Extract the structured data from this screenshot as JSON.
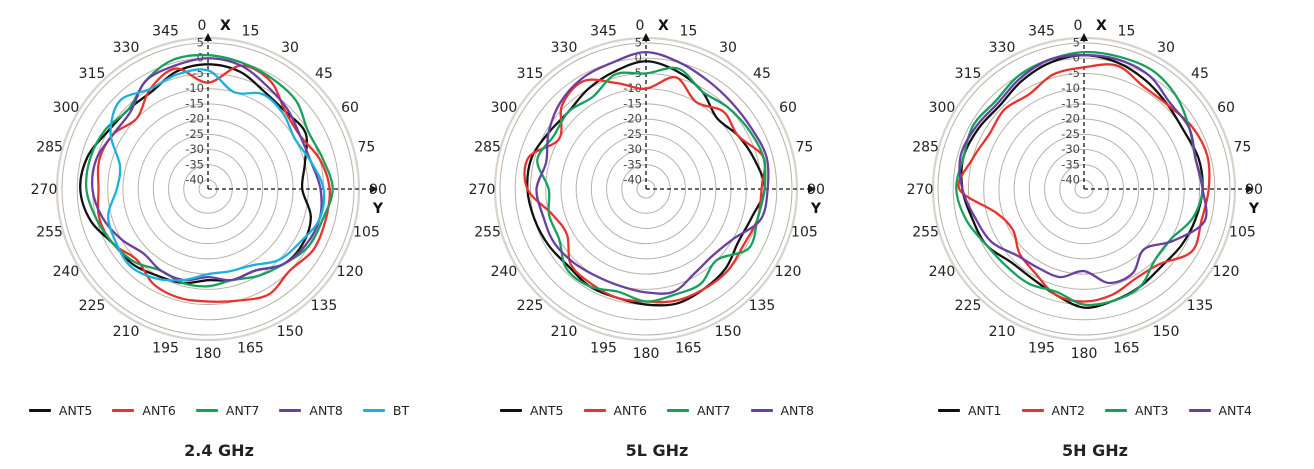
{
  "chart_data": [
    {
      "type": "polar-line",
      "title": "2.4 GHz",
      "axis_labels": {
        "x": "X",
        "y": "Y"
      },
      "rings": [
        "5",
        "0",
        "-5",
        "-10",
        "-15",
        "-20",
        "-25",
        "-30",
        "-35",
        "-40"
      ],
      "rlim": [
        -40,
        5
      ],
      "angle_labels": [
        "0",
        "15",
        "30",
        "45",
        "60",
        "75",
        "90",
        "105",
        "120",
        "135",
        "150",
        "165",
        "180",
        "195",
        "210",
        "225",
        "240",
        "255",
        "270",
        "285",
        "300",
        "315",
        "330",
        "345"
      ],
      "theta_deg": [
        0,
        15,
        30,
        45,
        60,
        75,
        90,
        105,
        120,
        135,
        150,
        165,
        180,
        195,
        210,
        225,
        240,
        255,
        270,
        285,
        300,
        315,
        330,
        345
      ],
      "legend_position": "bottom",
      "series": [
        {
          "name": "ANT5",
          "color": "#111111",
          "values": [
            -2,
            -3,
            -6,
            -7,
            -6,
            -10,
            -12,
            -8,
            -7,
            -8,
            -12,
            -12,
            -13,
            -11,
            -10,
            -8,
            -7,
            -3,
            -1,
            -2,
            -5,
            -6,
            -6,
            -3
          ]
        },
        {
          "name": "ANT6",
          "color": "#e8332d",
          "values": [
            -8,
            -1,
            -2,
            -7,
            -8,
            -5,
            -3,
            -3,
            -3,
            -5,
            -3,
            -5,
            -6,
            -6,
            -7,
            -10,
            -7,
            -6,
            -7,
            -6,
            -7,
            -10,
            -5,
            -2
          ]
        },
        {
          "name": "ANT7",
          "color": "#16a05c",
          "values": [
            1,
            0,
            -1,
            -2,
            -5,
            -4,
            -2,
            -4,
            -5,
            -8,
            -10,
            -12,
            -11,
            -11,
            -12,
            -9,
            -7,
            -5,
            -3,
            -3,
            -4,
            -6,
            -2,
            1
          ]
        },
        {
          "name": "ANT8",
          "color": "#6a3fa0",
          "values": [
            0,
            -1,
            -4,
            -6,
            -8,
            -8,
            -6,
            -5,
            -6,
            -8,
            -12,
            -12,
            -14,
            -12,
            -12,
            -13,
            -10,
            -7,
            -5,
            -5,
            -7,
            -7,
            -2,
            -1
          ]
        },
        {
          "name": "BT",
          "color": "#1ab0e0",
          "values": [
            -4,
            -10,
            -7,
            -8,
            -10,
            -8,
            -5,
            -5,
            -8,
            -10,
            -14,
            -15,
            -15,
            -12,
            -9,
            -7,
            -8,
            -9,
            -13,
            -13,
            -6,
            -2,
            -5,
            -4
          ]
        }
      ]
    },
    {
      "type": "polar-line",
      "title": "5L GHz",
      "axis_labels": {
        "x": "X",
        "y": "Y"
      },
      "rings": [
        "5",
        "0",
        "-5",
        "-10",
        "-15",
        "-20",
        "-25",
        "-30",
        "-35",
        "-40"
      ],
      "rlim": [
        -40,
        5
      ],
      "angle_labels": [
        "0",
        "15",
        "30",
        "45",
        "60",
        "75",
        "90",
        "105",
        "120",
        "135",
        "150",
        "165",
        "180",
        "195",
        "210",
        "225",
        "240",
        "255",
        "270",
        "285",
        "300",
        "315",
        "330",
        "345"
      ],
      "theta_deg": [
        0,
        15,
        30,
        45,
        60,
        75,
        90,
        105,
        120,
        135,
        150,
        165,
        180,
        195,
        210,
        225,
        240,
        255,
        270,
        285,
        300,
        315,
        330,
        345
      ],
      "legend_position": "bottom",
      "series": [
        {
          "name": "ANT5",
          "color": "#111111",
          "values": [
            -1,
            -3,
            -6,
            -10,
            -8,
            -6,
            -4,
            -7,
            -8,
            -6,
            -5,
            -4,
            -5,
            -6,
            -6,
            -7,
            -6,
            -5,
            -4,
            -4,
            -6,
            -7,
            -5,
            -3
          ]
        },
        {
          "name": "ANT6",
          "color": "#e8332d",
          "values": [
            -10,
            -5,
            -10,
            -7,
            -8,
            -3,
            -5,
            -5,
            -6,
            -5,
            -5,
            -5,
            -6,
            -6,
            -7,
            -8,
            -13,
            -11,
            -4,
            -3,
            -10,
            -4,
            -2,
            -7
          ]
        },
        {
          "name": "ANT7",
          "color": "#16a05c",
          "values": [
            -5,
            -2,
            -6,
            -5,
            -4,
            -3,
            -4,
            -5,
            -4,
            -10,
            -7,
            -7,
            -6,
            -8,
            -6,
            -6,
            -10,
            -10,
            -11,
            -6,
            -8,
            -7,
            -8,
            -4
          ]
        },
        {
          "name": "ANT8",
          "color": "#6a3fa0",
          "values": [
            2,
            0,
            -2,
            -3,
            -3,
            -2,
            -3,
            -4,
            -10,
            -12,
            -11,
            -8,
            -9,
            -10,
            -10,
            -9,
            -8,
            -8,
            -7,
            -9,
            -6,
            -3,
            -1,
            0
          ]
        }
      ]
    },
    {
      "type": "polar-line",
      "title": "5H GHz",
      "axis_labels": {
        "x": "X",
        "y": "Y"
      },
      "rings": [
        "5",
        "0",
        "-5",
        "-10",
        "-15",
        "-20",
        "-25",
        "-30",
        "-35",
        "-40"
      ],
      "rlim": [
        -40,
        5
      ],
      "angle_labels": [
        "0",
        "15",
        "30",
        "45",
        "60",
        "75",
        "90",
        "105",
        "120",
        "135",
        "150",
        "165",
        "180",
        "195",
        "210",
        "225",
        "240",
        "255",
        "270",
        "285",
        "300",
        "315",
        "330",
        "345"
      ],
      "theta_deg": [
        0,
        15,
        30,
        45,
        60,
        75,
        90,
        105,
        120,
        135,
        150,
        165,
        180,
        195,
        210,
        225,
        240,
        255,
        270,
        285,
        300,
        315,
        330,
        345
      ],
      "legend_position": "bottom",
      "series": [
        {
          "name": "ANT1",
          "color": "#111111",
          "values": [
            1,
            0,
            -2,
            -4,
            -5,
            -4,
            -4,
            -5,
            -6,
            -7,
            -6,
            -5,
            -4,
            -7,
            -9,
            -9,
            -6,
            -5,
            -3,
            -2,
            -3,
            -4,
            -2,
            0
          ]
        },
        {
          "name": "ANT2",
          "color": "#e8332d",
          "values": [
            -3,
            -1,
            -4,
            -4,
            -2,
            -1,
            -2,
            -3,
            -2,
            -8,
            -9,
            -7,
            -6,
            -7,
            -11,
            -13,
            -16,
            -13,
            -2,
            -5,
            -7,
            -6,
            -7,
            -4
          ]
        },
        {
          "name": "ANT3",
          "color": "#16a05c",
          "values": [
            2,
            2,
            2,
            0,
            -3,
            -5,
            -4,
            -6,
            -10,
            -10,
            -6,
            -5,
            -5,
            -8,
            -7,
            -7,
            -6,
            -3,
            -1,
            -2,
            -1,
            -2,
            0,
            1
          ]
        },
        {
          "name": "ANT4",
          "color": "#6a3fa0",
          "values": [
            1,
            1,
            0,
            -3,
            -3,
            -5,
            -4,
            -2,
            -9,
            -15,
            -11,
            -11,
            -16,
            -13,
            -13,
            -12,
            -8,
            -6,
            -3,
            -1,
            -2,
            -3,
            -1,
            1
          ]
        }
      ]
    }
  ]
}
